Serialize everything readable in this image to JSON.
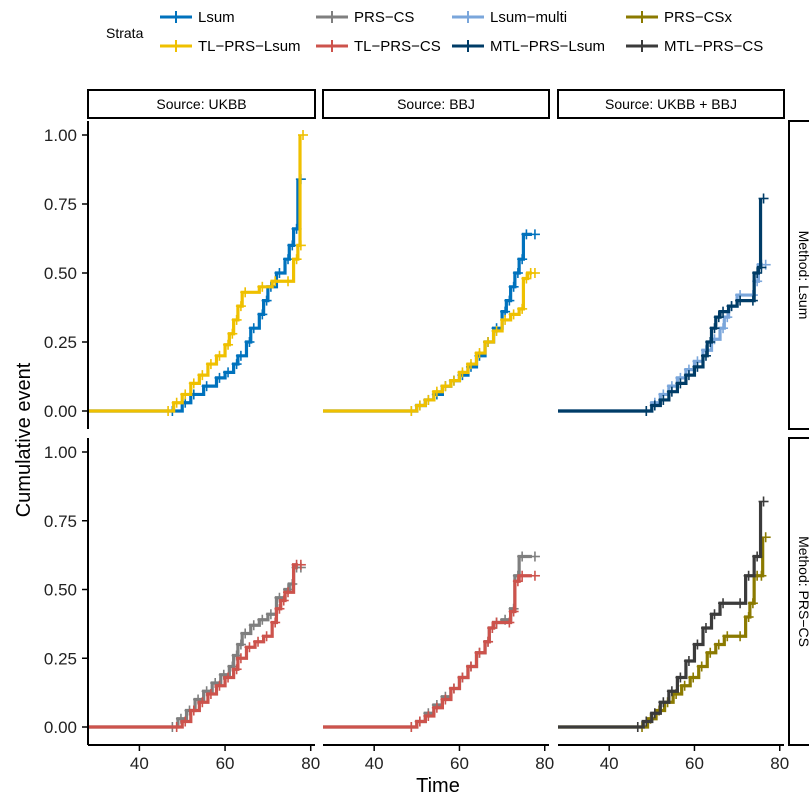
{
  "chart_data": {
    "type": "line",
    "subtype": "kaplan-meier cumulative event step curves (faceted)",
    "xlabel": "Time",
    "ylabel": "Cumulative event",
    "xlim": [
      28,
      81
    ],
    "ylim": [
      0,
      1.0
    ],
    "x_ticks": [
      "40",
      "60",
      "80"
    ],
    "y_ticks": [
      "0.00",
      "0.25",
      "0.50",
      "0.75",
      "1.00"
    ],
    "grid": false,
    "legend": {
      "title": "Strata",
      "position": "top",
      "entries": [
        {
          "name": "Lsum",
          "color": "#0072BD"
        },
        {
          "name": "PRS−CS",
          "color": "#7F7F7F"
        },
        {
          "name": "Lsum−multi",
          "color": "#7AA6DB"
        },
        {
          "name": "PRS−CSx",
          "color": "#8B7A00"
        },
        {
          "name": "TL−PRS−Lsum",
          "color": "#EFC000"
        },
        {
          "name": "TL−PRS−CS",
          "color": "#CD534C"
        },
        {
          "name": "MTL−PRS−Lsum",
          "color": "#003C67"
        },
        {
          "name": "MTL−PRS−CS",
          "color": "#3B3B3B"
        }
      ]
    },
    "facets": {
      "columns": [
        "Source: UKBB",
        "Source: BBJ",
        "Source: UKBB + BBJ"
      ],
      "rows": [
        "Method: Lsum",
        "Method: PRS−CS"
      ]
    },
    "panels": [
      {
        "row": 0,
        "col": 0,
        "series": [
          {
            "name": "Lsum",
            "color": "#0072BD",
            "points": [
              [
                28,
                0
              ],
              [
                47,
                0
              ],
              [
                50,
                0.03
              ],
              [
                52,
                0.06
              ],
              [
                55,
                0.09
              ],
              [
                58,
                0.12
              ],
              [
                60,
                0.14
              ],
              [
                62,
                0.17
              ],
              [
                63,
                0.2
              ],
              [
                65,
                0.25
              ],
              [
                66,
                0.3
              ],
              [
                68,
                0.35
              ],
              [
                69,
                0.4
              ],
              [
                70,
                0.45
              ],
              [
                72,
                0.5
              ],
              [
                74,
                0.55
              ],
              [
                75,
                0.6
              ],
              [
                76,
                0.66
              ],
              [
                77,
                0.84
              ]
            ]
          },
          {
            "name": "TL−PRS−Lsum",
            "color": "#EFC000",
            "points": [
              [
                28,
                0
              ],
              [
                46,
                0
              ],
              [
                48,
                0.03
              ],
              [
                50,
                0.06
              ],
              [
                52,
                0.1
              ],
              [
                54,
                0.13
              ],
              [
                56,
                0.17
              ],
              [
                58,
                0.2
              ],
              [
                60,
                0.24
              ],
              [
                61,
                0.28
              ],
              [
                62,
                0.33
              ],
              [
                63,
                0.38
              ],
              [
                64,
                0.43
              ],
              [
                68,
                0.45
              ],
              [
                71,
                0.47
              ],
              [
                74,
                0.47
              ],
              [
                76,
                0.55
              ],
              [
                77,
                0.6
              ],
              [
                77.5,
                1.0
              ]
            ]
          }
        ]
      },
      {
        "row": 0,
        "col": 1,
        "series": [
          {
            "name": "Lsum",
            "color": "#0072BD",
            "points": [
              [
                28,
                0
              ],
              [
                48,
                0
              ],
              [
                50,
                0.02
              ],
              [
                52,
                0.04
              ],
              [
                54,
                0.06
              ],
              [
                56,
                0.09
              ],
              [
                58,
                0.11
              ],
              [
                60,
                0.13
              ],
              [
                62,
                0.16
              ],
              [
                64,
                0.2
              ],
              [
                66,
                0.25
              ],
              [
                68,
                0.3
              ],
              [
                70,
                0.36
              ],
              [
                71,
                0.4
              ],
              [
                72,
                0.45
              ],
              [
                73,
                0.5
              ],
              [
                74,
                0.55
              ],
              [
                75,
                0.64
              ],
              [
                77,
                0.64
              ]
            ]
          },
          {
            "name": "TL−PRS−Lsum",
            "color": "#EFC000",
            "points": [
              [
                28,
                0
              ],
              [
                48,
                0
              ],
              [
                50,
                0.02
              ],
              [
                52,
                0.04
              ],
              [
                54,
                0.07
              ],
              [
                56,
                0.09
              ],
              [
                58,
                0.11
              ],
              [
                60,
                0.14
              ],
              [
                62,
                0.17
              ],
              [
                64,
                0.21
              ],
              [
                66,
                0.25
              ],
              [
                68,
                0.29
              ],
              [
                70,
                0.33
              ],
              [
                72,
                0.35
              ],
              [
                74,
                0.37
              ],
              [
                75,
                0.48
              ],
              [
                76,
                0.5
              ],
              [
                77,
                0.5
              ]
            ]
          }
        ]
      },
      {
        "row": 0,
        "col": 2,
        "series": [
          {
            "name": "Lsum−multi",
            "color": "#7AA6DB",
            "points": [
              [
                28,
                0
              ],
              [
                48,
                0
              ],
              [
                50,
                0.03
              ],
              [
                52,
                0.06
              ],
              [
                54,
                0.09
              ],
              [
                56,
                0.12
              ],
              [
                58,
                0.15
              ],
              [
                60,
                0.18
              ],
              [
                62,
                0.22
              ],
              [
                64,
                0.26
              ],
              [
                66,
                0.3
              ],
              [
                67,
                0.34
              ],
              [
                68,
                0.38
              ],
              [
                70,
                0.42
              ],
              [
                73,
                0.42
              ],
              [
                74,
                0.47
              ],
              [
                75,
                0.53
              ],
              [
                76,
                0.53
              ]
            ]
          },
          {
            "name": "MTL−PRS−Lsum",
            "color": "#003C67",
            "points": [
              [
                28,
                0
              ],
              [
                48,
                0
              ],
              [
                50,
                0.02
              ],
              [
                52,
                0.04
              ],
              [
                54,
                0.07
              ],
              [
                56,
                0.1
              ],
              [
                58,
                0.13
              ],
              [
                60,
                0.16
              ],
              [
                62,
                0.2
              ],
              [
                63,
                0.25
              ],
              [
                64,
                0.3
              ],
              [
                65,
                0.34
              ],
              [
                66,
                0.36
              ],
              [
                68,
                0.38
              ],
              [
                70,
                0.4
              ],
              [
                73,
                0.4
              ],
              [
                74,
                0.5
              ],
              [
                75,
                0.52
              ],
              [
                75.5,
                0.77
              ]
            ]
          }
        ]
      },
      {
        "row": 1,
        "col": 0,
        "series": [
          {
            "name": "PRS−CS",
            "color": "#7F7F7F",
            "points": [
              [
                28,
                0
              ],
              [
                47,
                0
              ],
              [
                49,
                0.03
              ],
              [
                51,
                0.06
              ],
              [
                53,
                0.1
              ],
              [
                55,
                0.13
              ],
              [
                57,
                0.16
              ],
              [
                59,
                0.19
              ],
              [
                61,
                0.22
              ],
              [
                62,
                0.26
              ],
              [
                63,
                0.3
              ],
              [
                64,
                0.34
              ],
              [
                66,
                0.37
              ],
              [
                68,
                0.39
              ],
              [
                70,
                0.41
              ],
              [
                72,
                0.47
              ],
              [
                74,
                0.5
              ],
              [
                75,
                0.52
              ],
              [
                76,
                0.58
              ],
              [
                77,
                0.58
              ]
            ]
          },
          {
            "name": "TL−PRS−CS",
            "color": "#CD534C",
            "points": [
              [
                28,
                0
              ],
              [
                48,
                0
              ],
              [
                50,
                0.02
              ],
              [
                52,
                0.06
              ],
              [
                54,
                0.09
              ],
              [
                56,
                0.12
              ],
              [
                58,
                0.15
              ],
              [
                60,
                0.18
              ],
              [
                62,
                0.21
              ],
              [
                63,
                0.25
              ],
              [
                65,
                0.29
              ],
              [
                67,
                0.31
              ],
              [
                69,
                0.33
              ],
              [
                71,
                0.38
              ],
              [
                72,
                0.43
              ],
              [
                73,
                0.46
              ],
              [
                74,
                0.49
              ],
              [
                76,
                0.59
              ],
              [
                77,
                0.59
              ]
            ]
          }
        ]
      },
      {
        "row": 1,
        "col": 1,
        "series": [
          {
            "name": "PRS−CS",
            "color": "#7F7F7F",
            "points": [
              [
                28,
                0
              ],
              [
                48,
                0
              ],
              [
                50,
                0.02
              ],
              [
                52,
                0.05
              ],
              [
                54,
                0.08
              ],
              [
                56,
                0.11
              ],
              [
                58,
                0.14
              ],
              [
                60,
                0.18
              ],
              [
                62,
                0.22
              ],
              [
                64,
                0.27
              ],
              [
                66,
                0.31
              ],
              [
                67,
                0.36
              ],
              [
                68,
                0.38
              ],
              [
                70,
                0.39
              ],
              [
                72,
                0.43
              ],
              [
                73,
                0.55
              ],
              [
                74,
                0.62
              ],
              [
                77,
                0.62
              ]
            ]
          },
          {
            "name": "TL−PRS−CS",
            "color": "#CD534C",
            "points": [
              [
                28,
                0
              ],
              [
                48,
                0
              ],
              [
                50,
                0.02
              ],
              [
                52,
                0.04
              ],
              [
                54,
                0.07
              ],
              [
                56,
                0.1
              ],
              [
                58,
                0.14
              ],
              [
                60,
                0.18
              ],
              [
                62,
                0.22
              ],
              [
                64,
                0.27
              ],
              [
                66,
                0.31
              ],
              [
                67,
                0.36
              ],
              [
                68,
                0.38
              ],
              [
                71,
                0.38
              ],
              [
                72,
                0.42
              ],
              [
                73,
                0.53
              ],
              [
                74,
                0.55
              ],
              [
                77,
                0.55
              ]
            ]
          }
        ]
      },
      {
        "row": 1,
        "col": 2,
        "series": [
          {
            "name": "PRS−CSx",
            "color": "#8B7A00",
            "points": [
              [
                28,
                0
              ],
              [
                47,
                0
              ],
              [
                49,
                0.03
              ],
              [
                51,
                0.06
              ],
              [
                53,
                0.09
              ],
              [
                55,
                0.12
              ],
              [
                57,
                0.15
              ],
              [
                59,
                0.18
              ],
              [
                61,
                0.22
              ],
              [
                63,
                0.27
              ],
              [
                65,
                0.3
              ],
              [
                67,
                0.33
              ],
              [
                70,
                0.33
              ],
              [
                72,
                0.4
              ],
              [
                73,
                0.45
              ],
              [
                74,
                0.55
              ],
              [
                75,
                0.55
              ],
              [
                76,
                0.69
              ]
            ]
          },
          {
            "name": "MTL−PRS−CS",
            "color": "#3B3B3B",
            "points": [
              [
                28,
                0
              ],
              [
                46,
                0
              ],
              [
                48,
                0.02
              ],
              [
                50,
                0.05
              ],
              [
                52,
                0.09
              ],
              [
                54,
                0.13
              ],
              [
                56,
                0.18
              ],
              [
                58,
                0.24
              ],
              [
                60,
                0.3
              ],
              [
                62,
                0.36
              ],
              [
                64,
                0.41
              ],
              [
                66,
                0.45
              ],
              [
                70,
                0.45
              ],
              [
                72,
                0.55
              ],
              [
                74,
                0.62
              ],
              [
                75.5,
                0.82
              ]
            ]
          }
        ]
      }
    ]
  }
}
